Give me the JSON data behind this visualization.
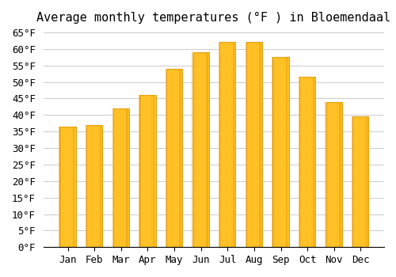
{
  "title": "Average monthly temperatures (°F ) in Bloemendaal",
  "months": [
    "Jan",
    "Feb",
    "Mar",
    "Apr",
    "May",
    "Jun",
    "Jul",
    "Aug",
    "Sep",
    "Oct",
    "Nov",
    "Dec"
  ],
  "values": [
    36.5,
    37,
    42,
    46,
    54,
    59,
    62,
    62,
    57.5,
    51.5,
    44,
    39.5
  ],
  "bar_color": "#FFC125",
  "bar_edge_color": "#E8A010",
  "background_color": "#FFFFFF",
  "ylim": [
    0,
    65
  ],
  "yticks": [
    0,
    5,
    10,
    15,
    20,
    25,
    30,
    35,
    40,
    45,
    50,
    55,
    60,
    65
  ],
  "title_fontsize": 11,
  "tick_fontsize": 9,
  "grid_color": "#CCCCCC"
}
